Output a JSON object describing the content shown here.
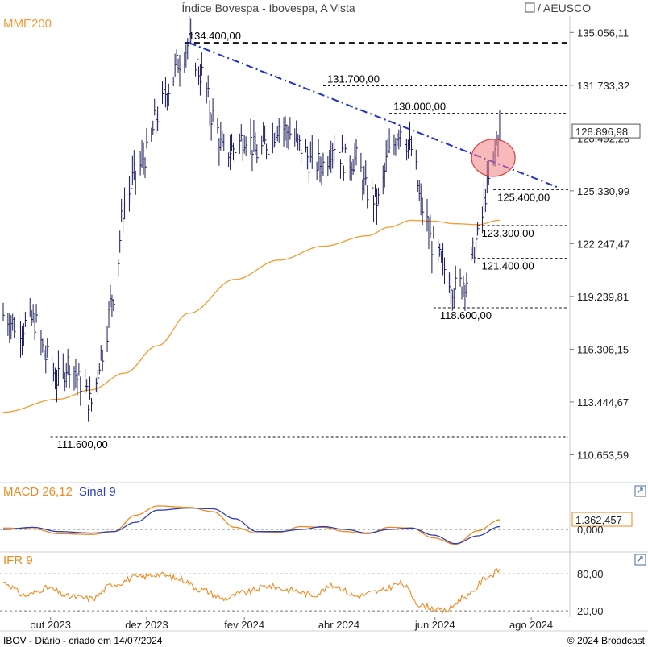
{
  "header": {
    "title": "Índice Bovespa - Ibovespa, A Vista",
    "right_label": "/ AEUSCO",
    "ma_label": "MME200"
  },
  "footer": {
    "left": "IBOV - Diário - criado em 14/07/2024",
    "right": "© 2024 Broadcast"
  },
  "colors": {
    "price": "#1a1a5e",
    "ema": "#f39b2f",
    "trend": "#1f2fd0",
    "macd": "#f08a1e",
    "signal": "#2f3fb8",
    "ifr": "#f08a1e",
    "highlight": "#f08080"
  },
  "chart_data": [
    {
      "type": "line",
      "panel": "price",
      "title": "Índice Bovespa - Ibovespa, A Vista",
      "y_axis_ticks": [
        "135.056,11",
        "131.733,32",
        "128.492,28",
        "125.330,99",
        "122.247,47",
        "119.239,81",
        "116.306,15",
        "113.444,67",
        "110.653,59"
      ],
      "y_axis_tick_values": [
        135056.11,
        131733.32,
        128492.28,
        125330.99,
        122247.47,
        119239.81,
        116306.15,
        113444.67,
        110653.59
      ],
      "ylim": [
        109500,
        136000
      ],
      "y_scale": "log",
      "last_value_label": "128.896,98",
      "last_value": 128896.98,
      "x_axis_labels": [
        "out 2023",
        "dez 2023",
        "fev 2024",
        "abr 2024",
        "jun 2024",
        "ago 2024"
      ],
      "x_axis_label_dates": [
        "2023-10-01",
        "2023-12-01",
        "2024-02-01",
        "2024-04-01",
        "2024-06-01",
        "2024-08-01"
      ],
      "xlim": [
        "2023-09-01",
        "2024-08-25"
      ],
      "series": [
        {
          "name": "Ibovespa",
          "style": "ohlc-bars",
          "x": [
            "2023-09-01",
            "2023-09-11",
            "2023-09-20",
            "2023-09-29",
            "2023-10-06",
            "2023-10-13",
            "2023-10-20",
            "2023-10-27",
            "2023-11-03",
            "2023-11-10",
            "2023-11-17",
            "2023-11-24",
            "2023-12-01",
            "2023-12-08",
            "2023-12-15",
            "2023-12-22",
            "2023-12-28",
            "2024-01-05",
            "2024-01-12",
            "2024-01-19",
            "2024-01-26",
            "2024-02-02",
            "2024-02-09",
            "2024-02-16",
            "2024-02-23",
            "2024-03-01",
            "2024-03-08",
            "2024-03-15",
            "2024-03-22",
            "2024-03-29",
            "2024-04-05",
            "2024-04-12",
            "2024-04-19",
            "2024-04-26",
            "2024-05-03",
            "2024-05-10",
            "2024-05-17",
            "2024-05-24",
            "2024-05-31",
            "2024-06-07",
            "2024-06-14",
            "2024-06-21",
            "2024-06-28",
            "2024-07-05",
            "2024-07-12"
          ],
          "y": [
            118200,
            117500,
            117900,
            115800,
            114600,
            115600,
            114500,
            113400,
            116200,
            119400,
            124500,
            126300,
            127500,
            129900,
            131600,
            133300,
            134300,
            132400,
            129800,
            127600,
            127900,
            128700,
            127600,
            128200,
            129300,
            128800,
            127900,
            127000,
            126900,
            128200,
            127100,
            127200,
            125300,
            124700,
            127500,
            129100,
            127800,
            124300,
            122100,
            120800,
            119700,
            120200,
            122500,
            125800,
            128896.98
          ]
        },
        {
          "name": "MME200",
          "style": "line",
          "x": [
            "2023-09-01",
            "2023-10-06",
            "2023-10-27",
            "2023-11-17",
            "2023-12-08",
            "2023-12-28",
            "2024-01-26",
            "2024-02-23",
            "2024-03-22",
            "2024-04-19",
            "2024-05-03",
            "2024-05-17",
            "2024-05-31",
            "2024-06-14",
            "2024-06-28",
            "2024-07-12"
          ],
          "y": [
            112900,
            113600,
            114100,
            115000,
            116500,
            118300,
            120200,
            121300,
            122100,
            122700,
            123200,
            123600,
            123550,
            123400,
            123350,
            123600
          ]
        }
      ],
      "trendline": {
        "name": "LTB",
        "style": "dash-dot",
        "x": [
          "2023-12-28",
          "2024-08-19"
        ],
        "y": [
          134400,
          125500
        ]
      },
      "levels": [
        {
          "label": "134.400,00",
          "value": 134400,
          "from": "2023-12-25"
        },
        {
          "label": "131.700,00",
          "value": 131700,
          "from": "2024-03-22"
        },
        {
          "label": "130.000,00",
          "value": 130000,
          "from": "2024-05-03"
        },
        {
          "label": "125.400,00",
          "value": 125400,
          "from": "2024-07-08"
        },
        {
          "label": "123.300,00",
          "value": 123300,
          "from": "2024-06-28"
        },
        {
          "label": "121.400,00",
          "value": 121400,
          "from": "2024-06-28"
        },
        {
          "label": "118.600,00",
          "value": 118600,
          "from": "2024-05-31"
        },
        {
          "label": "111.600,00",
          "value": 111600,
          "from": "2023-10-01"
        }
      ],
      "annotation": {
        "shape": "circle",
        "x": "2024-07-08",
        "y": 127300
      }
    },
    {
      "type": "line",
      "panel": "macd",
      "title": "MACD 26,12",
      "ylim": [
        -2.6,
        4.2
      ],
      "y_axis_ticks": [
        "1.362,457",
        "0,000"
      ],
      "y_axis_tick_values": [
        1.362457,
        0
      ],
      "y_units": "thousands",
      "series": [
        {
          "name": "MACD 26,12",
          "x": [
            "2023-09-01",
            "2023-09-20",
            "2023-10-06",
            "2023-10-27",
            "2023-11-10",
            "2023-11-24",
            "2023-12-08",
            "2023-12-28",
            "2024-01-12",
            "2024-01-26",
            "2024-02-09",
            "2024-02-23",
            "2024-03-08",
            "2024-03-22",
            "2024-04-05",
            "2024-04-19",
            "2024-05-03",
            "2024-05-17",
            "2024-05-31",
            "2024-06-14",
            "2024-06-28",
            "2024-07-12"
          ],
          "y": [
            0.2,
            0.1,
            -0.6,
            -0.7,
            -0.3,
            2.0,
            3.3,
            3.1,
            2.5,
            0.3,
            -0.5,
            -0.4,
            0.4,
            0.3,
            -0.3,
            -0.6,
            0.3,
            0.2,
            -1.2,
            -2.1,
            -0.2,
            1.36
          ]
        },
        {
          "name": "Sinal 9",
          "x": [
            "2023-09-01",
            "2023-09-20",
            "2023-10-06",
            "2023-10-27",
            "2023-11-10",
            "2023-11-24",
            "2023-12-08",
            "2023-12-28",
            "2024-01-12",
            "2024-01-26",
            "2024-02-09",
            "2024-02-23",
            "2024-03-08",
            "2024-03-22",
            "2024-04-05",
            "2024-04-19",
            "2024-05-03",
            "2024-05-17",
            "2024-05-31",
            "2024-06-14",
            "2024-06-28",
            "2024-07-12"
          ],
          "y": [
            0.0,
            0.3,
            -0.3,
            -0.5,
            -0.3,
            1.0,
            2.7,
            3.0,
            2.9,
            1.5,
            -0.3,
            -0.3,
            0.0,
            0.4,
            0.0,
            -0.5,
            0.0,
            0.2,
            -0.8,
            -2.0,
            -0.9,
            0.4
          ]
        }
      ]
    },
    {
      "type": "line",
      "panel": "ifr",
      "title": "IFR 9",
      "ylim": [
        15,
        92
      ],
      "y_axis_ticks": [
        "80,00",
        "20,00"
      ],
      "y_axis_tick_values": [
        80,
        20
      ],
      "series": [
        {
          "name": "IFR 9",
          "x": [
            "2023-09-01",
            "2023-09-15",
            "2023-09-29",
            "2023-10-13",
            "2023-10-27",
            "2023-11-10",
            "2023-11-24",
            "2023-12-08",
            "2023-12-22",
            "2024-01-05",
            "2024-01-19",
            "2024-02-02",
            "2024-02-16",
            "2024-03-01",
            "2024-03-15",
            "2024-03-29",
            "2024-04-12",
            "2024-04-26",
            "2024-05-10",
            "2024-05-24",
            "2024-06-07",
            "2024-06-21",
            "2024-07-05",
            "2024-07-12"
          ],
          "y": [
            66,
            45,
            57,
            43,
            40,
            63,
            74,
            79,
            72,
            54,
            40,
            50,
            60,
            54,
            46,
            61,
            44,
            51,
            64,
            28,
            20,
            44,
            76,
            86
          ]
        }
      ]
    }
  ],
  "panels": {
    "macd": {
      "label": "MACD 26,12",
      "signal_label": "Sinal 9"
    },
    "ifr": {
      "label": "IFR 9"
    }
  }
}
